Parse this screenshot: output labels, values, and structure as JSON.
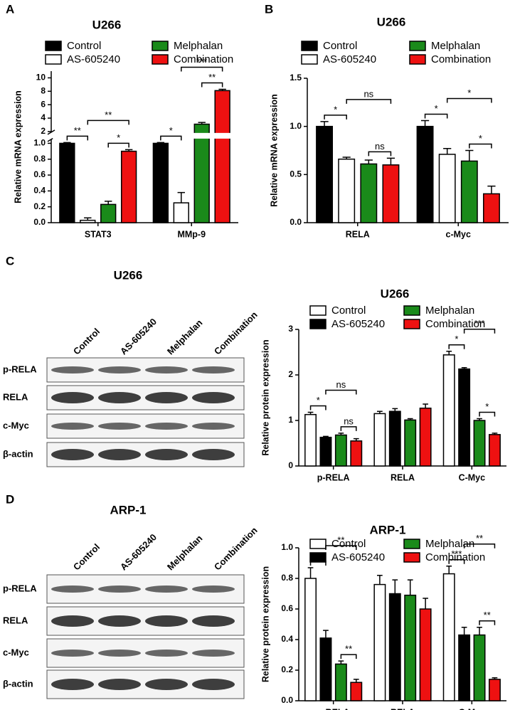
{
  "panels": [
    "A",
    "B",
    "C",
    "D"
  ],
  "blots": [
    {
      "title": "U266",
      "lanes": [
        "Control",
        "AS-605240",
        "Melphalan",
        "Combination"
      ],
      "rows": [
        "p-RELA",
        "RELA",
        "c-Myc",
        "β-actin"
      ]
    },
    {
      "title": "ARP-1",
      "lanes": [
        "Control",
        "AS-605240",
        "Melphalan",
        "Combination"
      ],
      "rows": [
        "p-RELA",
        "RELA",
        "c-Myc",
        "β-actin"
      ]
    }
  ],
  "chart_data": [
    {
      "type": "bar",
      "title": "U266",
      "ylabel": "Relative mRNA expression",
      "categories": [
        "STAT3",
        "MMp-9"
      ],
      "series": [
        {
          "name": "Control",
          "color": "#000000",
          "values": [
            1.0,
            1.0
          ],
          "errors": [
            0.01,
            0.01
          ]
        },
        {
          "name": "AS-605240",
          "color": "#ffffff",
          "values": [
            0.03,
            0.25
          ],
          "errors": [
            0.03,
            0.13
          ]
        },
        {
          "name": "Melphalan",
          "color": "#1a8a1a",
          "values": [
            0.23,
            3.1
          ],
          "errors": [
            0.04,
            0.25
          ]
        },
        {
          "name": "Combination",
          "color": "#ee1111",
          "values": [
            0.9,
            8.1
          ],
          "errors": [
            0.02,
            0.2
          ]
        }
      ],
      "ylim": [
        0,
        11
      ],
      "y_break": [
        1.05,
        1.9
      ],
      "yticks": [
        {
          "value": 0,
          "label": "0.0"
        },
        0.2,
        0.4,
        0.6,
        0.8,
        {
          "value": 1.0,
          "label": "1.0"
        },
        2,
        4,
        6,
        8,
        10
      ],
      "annotations": [
        {
          "text": "**",
          "category": 0,
          "bars": [
            0,
            1
          ]
        },
        {
          "text": "*",
          "category": 0,
          "bars": [
            2,
            3
          ]
        },
        {
          "text": "**",
          "category": 0,
          "bars": [
            1,
            3
          ]
        },
        {
          "text": "*",
          "category": 1,
          "bars": [
            0,
            1
          ]
        },
        {
          "text": "**",
          "category": 1,
          "bars": [
            2,
            3
          ]
        },
        {
          "text": "***",
          "category": 1,
          "bars": [
            1,
            3
          ]
        }
      ]
    },
    {
      "type": "bar",
      "title": "U266",
      "ylabel": "Relative mRNA expression",
      "categories": [
        "RELA",
        "c-Myc"
      ],
      "series": [
        {
          "name": "Control",
          "color": "#000000",
          "values": [
            1.0,
            1.0
          ],
          "errors": [
            0.05,
            0.06
          ]
        },
        {
          "name": "AS-605240",
          "color": "#ffffff",
          "values": [
            0.66,
            0.71
          ],
          "errors": [
            0.02,
            0.06
          ]
        },
        {
          "name": "Melphalan",
          "color": "#1a8a1a",
          "values": [
            0.61,
            0.64
          ],
          "errors": [
            0.04,
            0.11
          ]
        },
        {
          "name": "Combination",
          "color": "#ee1111",
          "values": [
            0.6,
            0.3
          ],
          "errors": [
            0.07,
            0.08
          ]
        }
      ],
      "ylim": [
        0,
        1.5
      ],
      "yticks": [
        {
          "value": 0,
          "label": "0.0"
        },
        0.5,
        {
          "value": 1,
          "label": "1.0"
        },
        1.5
      ],
      "annotations": [
        {
          "text": "*",
          "category": 0,
          "bars": [
            0,
            1
          ]
        },
        {
          "text": "ns",
          "category": 0,
          "bars": [
            2,
            3
          ]
        },
        {
          "text": "ns",
          "category": 0,
          "bars": [
            1,
            3
          ]
        },
        {
          "text": "*",
          "category": 1,
          "bars": [
            0,
            1
          ]
        },
        {
          "text": "*",
          "category": 1,
          "bars": [
            2,
            3
          ]
        },
        {
          "text": "*",
          "category": 1,
          "bars": [
            1,
            3
          ]
        }
      ]
    },
    {
      "type": "bar",
      "title": "U266",
      "ylabel": "Relative protein expression",
      "categories": [
        "p-RELA",
        "RELA",
        "C-Myc"
      ],
      "series": [
        {
          "name": "Control",
          "color": "#ffffff",
          "values": [
            1.13,
            1.15,
            2.44
          ],
          "errors": [
            0.05,
            0.05,
            0.08
          ]
        },
        {
          "name": "AS-605240",
          "color": "#000000",
          "values": [
            0.63,
            1.2,
            2.13
          ],
          "errors": [
            0.02,
            0.06,
            0.03
          ]
        },
        {
          "name": "Melphalan",
          "color": "#1a8a1a",
          "values": [
            0.68,
            1.01,
            1.0
          ],
          "errors": [
            0.04,
            0.03,
            0.04
          ]
        },
        {
          "name": "Combination",
          "color": "#ee1111",
          "values": [
            0.55,
            1.27,
            0.69
          ],
          "errors": [
            0.05,
            0.09,
            0.03
          ]
        }
      ],
      "ylim": [
        0,
        3
      ],
      "yticks": [
        0,
        1,
        2,
        3
      ],
      "annotations": [
        {
          "text": "*",
          "category": 0,
          "bars": [
            0,
            1
          ]
        },
        {
          "text": "ns",
          "category": 0,
          "bars": [
            2,
            3
          ]
        },
        {
          "text": "ns",
          "category": 0,
          "bars": [
            1,
            3
          ]
        },
        {
          "text": "*",
          "category": 2,
          "bars": [
            0,
            1
          ]
        },
        {
          "text": "*",
          "category": 2,
          "bars": [
            2,
            3
          ]
        },
        {
          "text": "***",
          "category": 2,
          "bars": [
            1,
            3
          ]
        }
      ]
    },
    {
      "type": "bar",
      "title": "ARP-1",
      "ylabel": "Relative protein expression",
      "categories": [
        "p-RELA",
        "RELA",
        "C-Myc"
      ],
      "series": [
        {
          "name": "Control",
          "color": "#ffffff",
          "values": [
            0.8,
            0.76,
            0.83
          ],
          "errors": [
            0.07,
            0.06,
            0.05
          ]
        },
        {
          "name": "AS-605240",
          "color": "#000000",
          "values": [
            0.41,
            0.7,
            0.43
          ],
          "errors": [
            0.05,
            0.09,
            0.05
          ]
        },
        {
          "name": "Melphalan",
          "color": "#1a8a1a",
          "values": [
            0.24,
            0.69,
            0.43
          ],
          "errors": [
            0.02,
            0.1,
            0.05
          ]
        },
        {
          "name": "Combination",
          "color": "#ee1111",
          "values": [
            0.12,
            0.6,
            0.14
          ],
          "errors": [
            0.02,
            0.07,
            0.01
          ]
        }
      ],
      "ylim": [
        0,
        1.0
      ],
      "yticks": [
        {
          "value": 0,
          "label": "0.0"
        },
        0.2,
        0.4,
        0.6,
        0.8,
        {
          "value": 1,
          "label": "1.0"
        }
      ],
      "annotations": [
        {
          "text": "***",
          "category": 0,
          "bars": [
            0,
            1
          ]
        },
        {
          "text": "**",
          "category": 0,
          "bars": [
            2,
            3
          ]
        },
        {
          "text": "**",
          "category": 0,
          "bars": [
            1,
            3
          ]
        },
        {
          "text": "***",
          "category": 2,
          "bars": [
            0,
            1
          ]
        },
        {
          "text": "**",
          "category": 2,
          "bars": [
            2,
            3
          ]
        },
        {
          "text": "**",
          "category": 2,
          "bars": [
            1,
            3
          ]
        }
      ]
    }
  ]
}
